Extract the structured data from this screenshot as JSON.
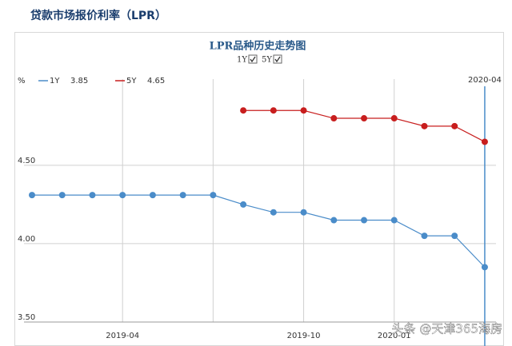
{
  "page_title": "贷款市场报价利率（LPR）",
  "watermark": "头条 @天津365海房",
  "chart_data": {
    "type": "line",
    "title": "LPR品种历史走势图",
    "y_unit": "%",
    "categories": [
      null,
      null,
      null,
      "2019-04",
      null,
      null,
      null,
      null,
      null,
      "2019-10",
      null,
      null,
      "2020-01",
      null,
      null,
      "2020-04"
    ],
    "series": [
      {
        "name": "1Y",
        "color": "#4a8cc9",
        "values": [
          4.31,
          4.31,
          4.31,
          4.31,
          4.31,
          4.31,
          4.31,
          4.25,
          4.2,
          4.2,
          4.15,
          4.15,
          4.15,
          4.05,
          4.05,
          3.85
        ]
      },
      {
        "name": "5Y",
        "color": "#c81e1e",
        "values": [
          null,
          null,
          null,
          null,
          null,
          null,
          null,
          4.85,
          4.85,
          4.85,
          4.8,
          4.8,
          4.8,
          4.75,
          4.75,
          4.65
        ]
      }
    ],
    "ylim": [
      3.5,
      5.05
    ],
    "yticks": [
      {
        "value": 3.5,
        "label": "3.50"
      },
      {
        "value": 4,
        "label": "4.00"
      },
      {
        "value": 4.5,
        "label": "4.50"
      }
    ],
    "grid": true
  }
}
